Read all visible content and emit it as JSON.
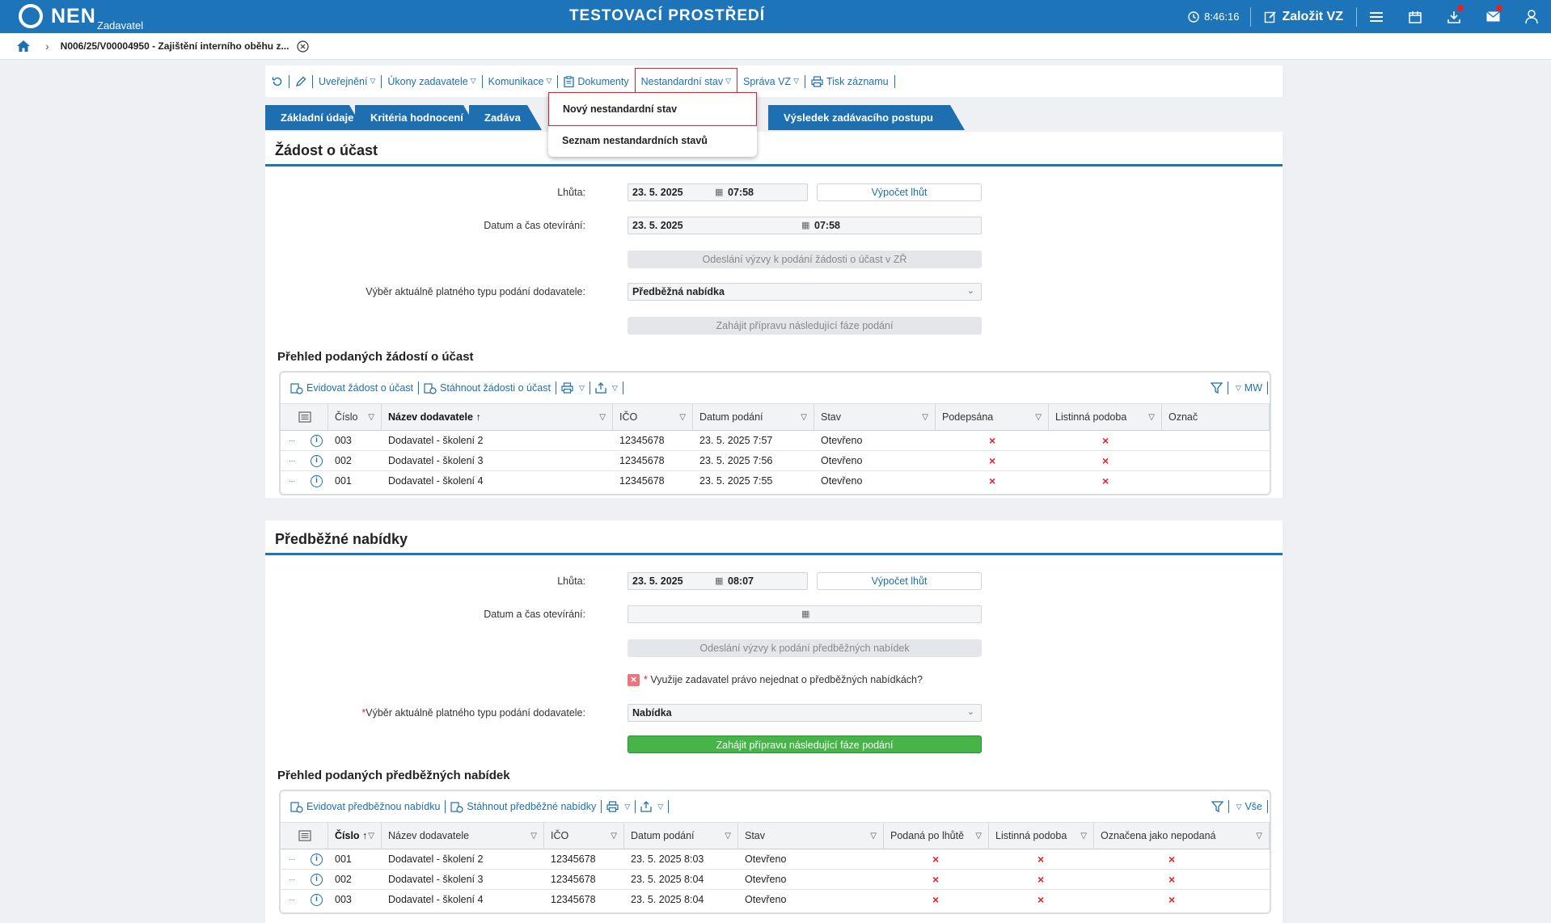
{
  "app": {
    "logo": "NEN",
    "logo_sub": "Zadavatel",
    "env_title": "TESTOVACÍ PROSTŘEDÍ",
    "time": "8:46:16",
    "new_vz": "Založit VZ"
  },
  "breadcrumb": {
    "item": "N006/25/V00004950 - Zajištění interního oběhu z..."
  },
  "toolbar": {
    "items": [
      "Uveřejnění",
      "Úkony zadavatele",
      "Komunikace",
      "Dokumenty",
      "Nestandardní stav",
      "Správa VZ",
      "Tisk záznamu"
    ]
  },
  "tabs": [
    "Základní údaje",
    "Kritéria hodnocení",
    "Zadáva",
    "Výsledek zadávacího postupu"
  ],
  "dropdown": {
    "items": [
      "Nový nestandardní stav",
      "Seznam nestandardních stavů"
    ]
  },
  "s1": {
    "title": "Žádost o účast",
    "lhuta_label": "Lhůta:",
    "lhuta_date": "23. 5. 2025",
    "lhuta_time": "07:58",
    "calc_btn": "Výpočet lhůt",
    "open_label": "Datum a čas otevírání:",
    "open_date": "23. 5. 2025",
    "open_time": "07:58",
    "send_btn": "Odeslání výzvy k podání žádosti o účast v ZŘ",
    "type_label": "Výběr aktuálně platného typu podání dodavatele:",
    "type_value": "Předběžná nabídka",
    "start_btn": "Zahájit přípravu následující fáze podání",
    "grid_title": "Přehled podaných žádostí o účast",
    "grid_tool": {
      "a": "Evidovat žádost o účast",
      "b": "Stáhnout žádosti o účast",
      "view": "MW"
    },
    "headers": [
      "Číslo",
      "Název dodavatele",
      "IČO",
      "Datum podání",
      "Stav",
      "Podepsána",
      "Listinná podoba",
      "Označ"
    ],
    "rows": [
      {
        "num": "003",
        "name": "Dodavatel - školení 2",
        "ico": "12345678",
        "date": "23. 5. 2025 7:57",
        "state": "Otevřeno"
      },
      {
        "num": "002",
        "name": "Dodavatel - školení 3",
        "ico": "12345678",
        "date": "23. 5. 2025 7:56",
        "state": "Otevřeno"
      },
      {
        "num": "001",
        "name": "Dodavatel - školení 4",
        "ico": "12345678",
        "date": "23. 5. 2025 7:55",
        "state": "Otevřeno"
      }
    ]
  },
  "s2": {
    "title": "Předběžné nabídky",
    "lhuta_label": "Lhůta:",
    "lhuta_date": "23. 5. 2025",
    "lhuta_time": "08:07",
    "calc_btn": "Výpočet lhůt",
    "open_label": "Datum a čas otevírání:",
    "send_btn": "Odeslání výzvy k podání předběžných nabídek",
    "check_label": "Využije zadavatel právo nejednat o předběžných nabídkách?",
    "type_label": "Výběr aktuálně platného typu podání dodavatele:",
    "type_value": "Nabídka",
    "start_btn": "Zahájit přípravu následující fáze podání",
    "grid_title": "Přehled podaných předběžných nabídek",
    "grid_tool": {
      "a": "Evidovat předběžnou nabídku",
      "b": "Stáhnout předběžné nabídky",
      "view": "Vše"
    },
    "headers": [
      "Číslo",
      "Název dodavatele",
      "IČO",
      "Datum podání",
      "Stav",
      "Podaná po lhůtě",
      "Listinná podoba",
      "Označena jako nepodaná"
    ],
    "rows": [
      {
        "num": "001",
        "name": "Dodavatel - školení 2",
        "ico": "12345678",
        "date": "23. 5. 2025 8:03",
        "state": "Otevřeno"
      },
      {
        "num": "002",
        "name": "Dodavatel - školení 3",
        "ico": "12345678",
        "date": "23. 5. 2025 8:04",
        "state": "Otevřeno"
      },
      {
        "num": "003",
        "name": "Dodavatel - školení 4",
        "ico": "12345678",
        "date": "23. 5. 2025 8:04",
        "state": "Otevřeno"
      }
    ]
  },
  "marks": {
    "required": "*",
    "cross": "×",
    "sort_asc": "↑",
    "filter": "▽",
    "more": "⋯",
    "info": "i"
  }
}
